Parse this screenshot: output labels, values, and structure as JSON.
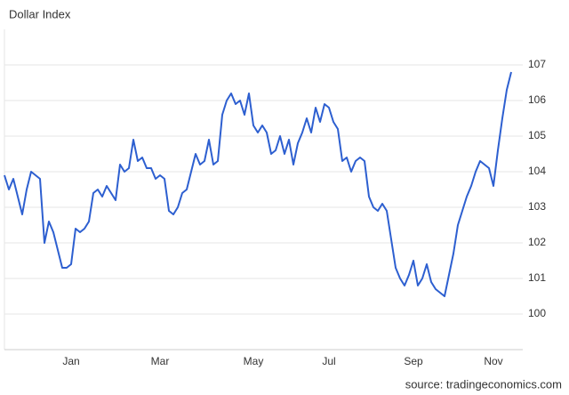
{
  "chart_data": {
    "type": "line",
    "title": "Dollar Index",
    "source": "source: tradingeconomics.com",
    "categories": [
      null,
      null,
      null,
      null,
      null,
      null,
      null,
      null,
      null,
      null,
      null,
      null,
      null,
      null,
      null,
      "Jan",
      null,
      null,
      null,
      null,
      null,
      null,
      null,
      null,
      null,
      null,
      null,
      null,
      null,
      null,
      null,
      null,
      null,
      null,
      null,
      "Mar",
      null,
      null,
      null,
      null,
      null,
      null,
      null,
      null,
      null,
      null,
      null,
      null,
      null,
      null,
      null,
      null,
      null,
      null,
      null,
      null,
      "May",
      null,
      null,
      null,
      null,
      null,
      null,
      null,
      null,
      null,
      null,
      null,
      null,
      null,
      null,
      null,
      null,
      "Jul",
      null,
      null,
      null,
      null,
      null,
      null,
      null,
      null,
      null,
      null,
      null,
      null,
      null,
      null,
      null,
      null,
      null,
      null,
      "Sep",
      null,
      null,
      null,
      null,
      null,
      null,
      null,
      null,
      null,
      null,
      null,
      null,
      null,
      null,
      null,
      null,
      null,
      "Nov",
      null,
      null,
      null,
      null
    ],
    "series": [
      {
        "name": "Dollar Index",
        "color": "#2d5fd0",
        "values": [
          103.9,
          103.5,
          103.8,
          103.3,
          102.8,
          103.5,
          104.0,
          103.9,
          103.8,
          102.0,
          102.6,
          102.3,
          101.8,
          101.3,
          101.3,
          101.4,
          102.4,
          102.3,
          102.4,
          102.6,
          103.4,
          103.5,
          103.3,
          103.6,
          103.4,
          103.2,
          104.2,
          104.0,
          104.1,
          104.9,
          104.3,
          104.4,
          104.1,
          104.1,
          103.8,
          103.9,
          103.8,
          102.9,
          102.8,
          103.0,
          103.4,
          103.5,
          104.0,
          104.5,
          104.2,
          104.3,
          104.9,
          104.2,
          104.3,
          105.6,
          106.0,
          106.2,
          105.9,
          106.0,
          105.6,
          106.2,
          105.3,
          105.1,
          105.3,
          105.1,
          104.5,
          104.6,
          105.0,
          104.5,
          104.9,
          104.2,
          104.8,
          105.1,
          105.5,
          105.1,
          105.8,
          105.4,
          105.9,
          105.8,
          105.4,
          105.2,
          104.3,
          104.4,
          104.0,
          104.3,
          104.4,
          104.3,
          103.3,
          103.0,
          102.9,
          103.1,
          102.9,
          102.1,
          101.3,
          101.0,
          100.8,
          101.1,
          101.5,
          100.8,
          101.0,
          101.4,
          100.9,
          100.7,
          100.6,
          100.5,
          101.1,
          101.7,
          102.5,
          102.9,
          103.3,
          103.6,
          104.0,
          104.3,
          104.2,
          104.1,
          103.6,
          104.6,
          105.5,
          106.3,
          106.8
        ]
      }
    ],
    "ylim": [
      99,
      108
    ],
    "yticks": [
      100,
      101,
      102,
      103,
      104,
      105,
      106,
      107
    ],
    "grid": true
  }
}
